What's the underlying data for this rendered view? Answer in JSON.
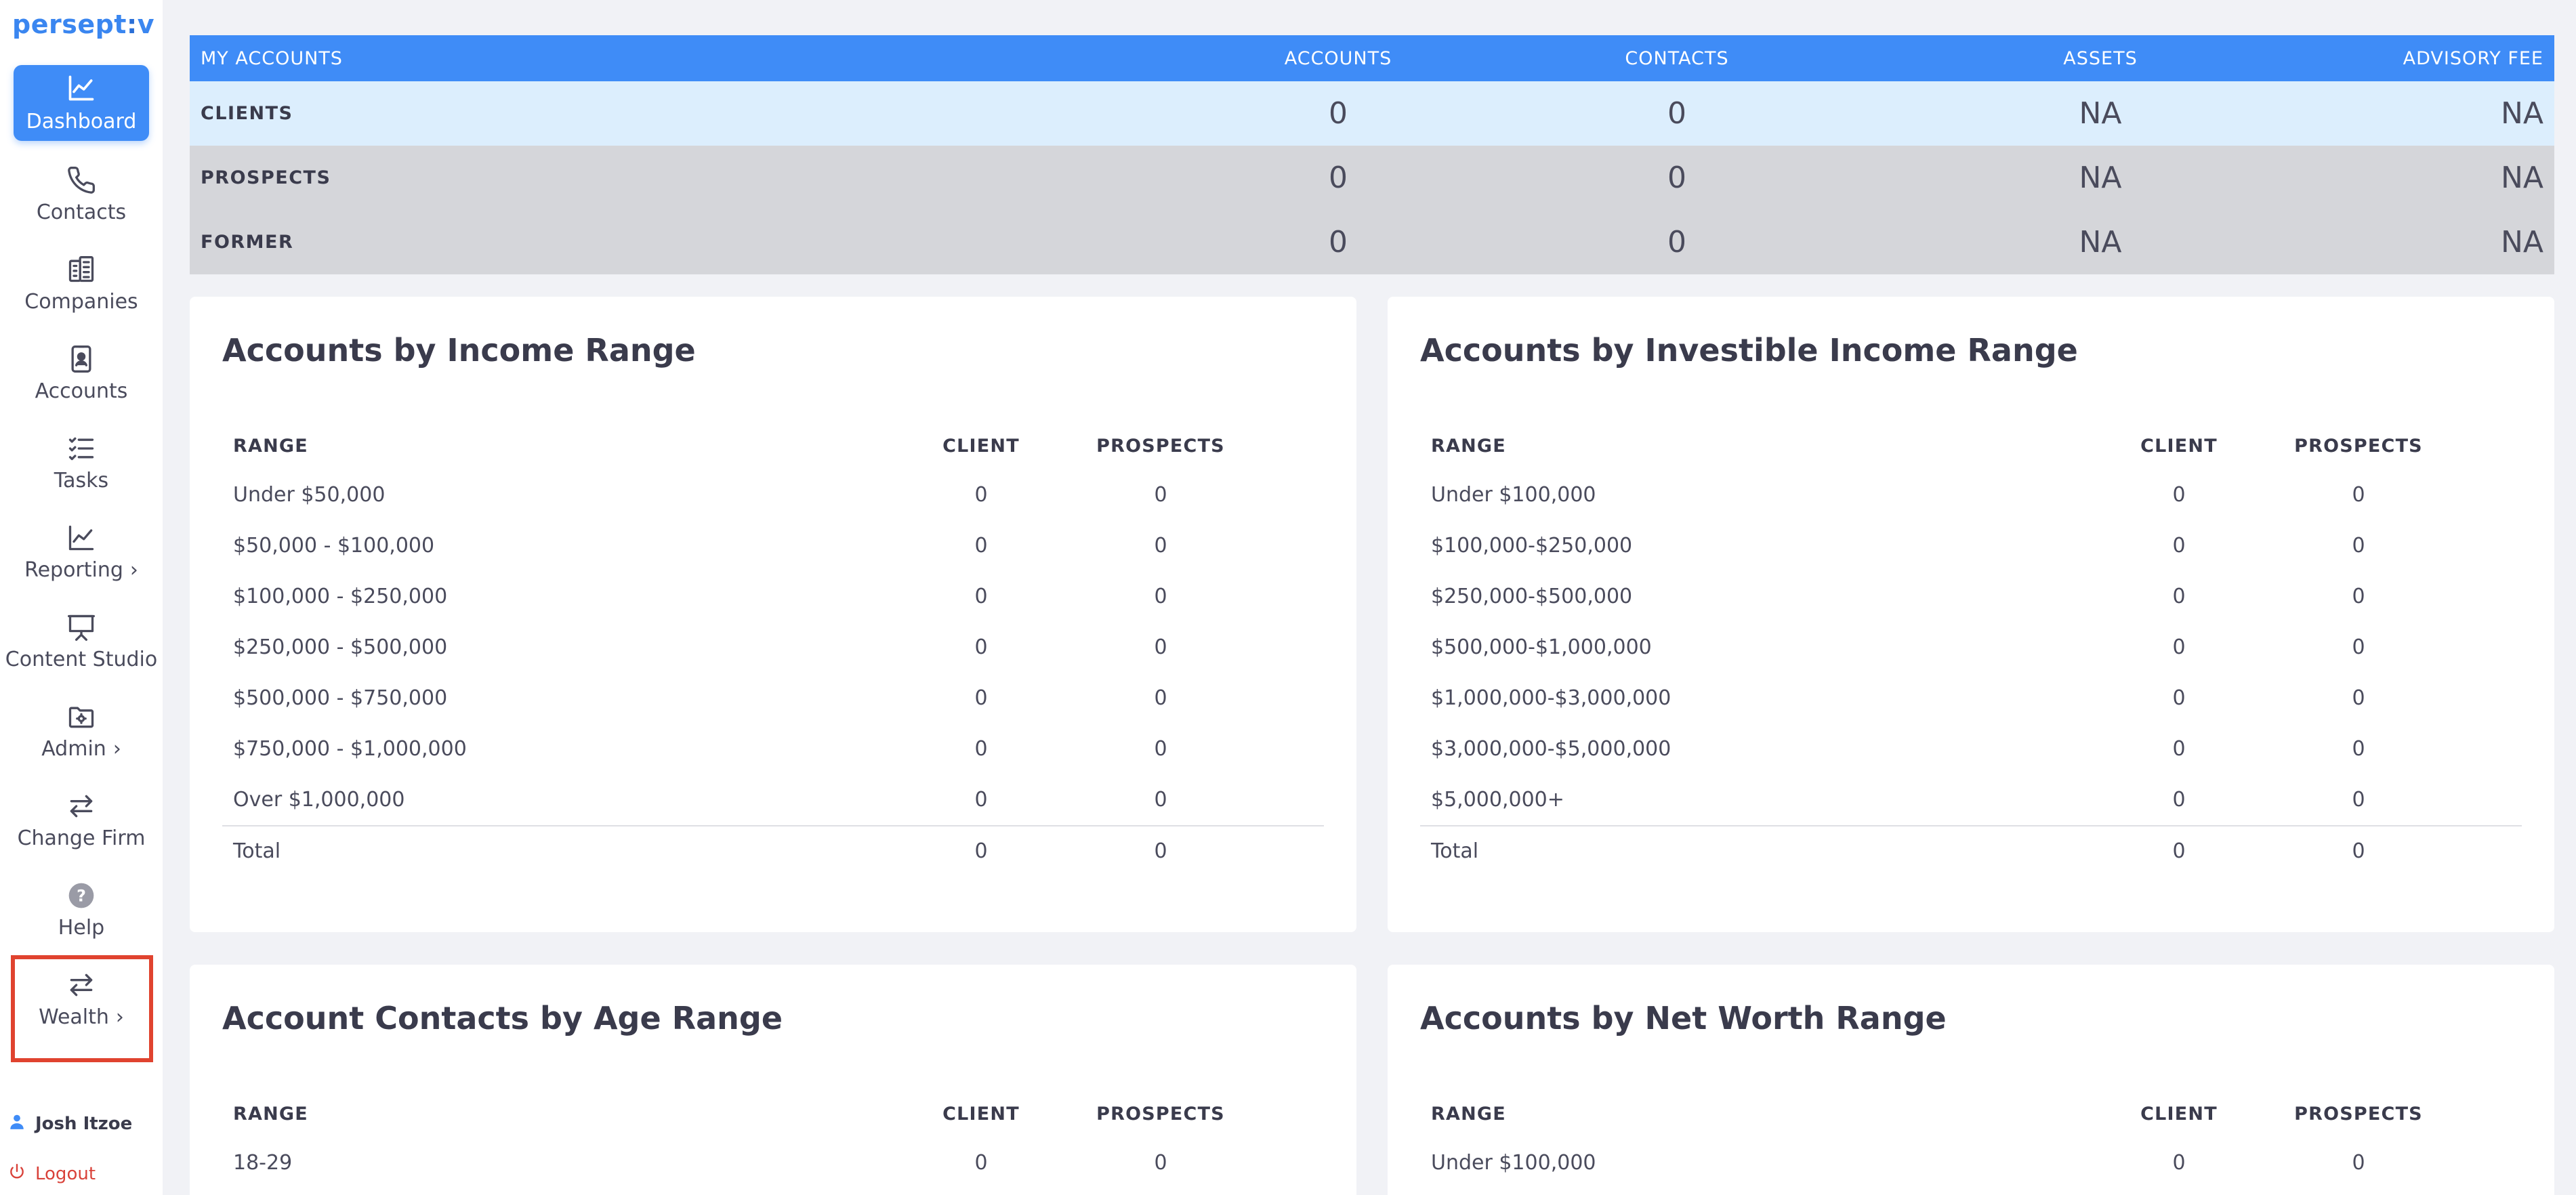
{
  "brand": {
    "logo_text": "persept",
    "logo_colon": ":",
    "logo_tail": "v"
  },
  "sidebar": {
    "items": [
      {
        "label": "Dashboard",
        "icon": "chart-line-icon",
        "active": true
      },
      {
        "label": "Contacts",
        "icon": "phone-icon"
      },
      {
        "label": "Companies",
        "icon": "building-icon"
      },
      {
        "label": "Accounts",
        "icon": "id-badge-icon"
      },
      {
        "label": "Tasks",
        "icon": "tasks-list-icon"
      },
      {
        "label": "Reporting",
        "icon": "chart-line-icon",
        "chevron": "›"
      },
      {
        "label": "Content Studio",
        "icon": "presentation-icon"
      },
      {
        "label": "Admin",
        "icon": "folder-gear-icon",
        "chevron": "›"
      },
      {
        "label": "Change Firm",
        "icon": "swap-arrows-icon"
      },
      {
        "label": "Help",
        "icon": "help-circle-icon",
        "glyph": "?"
      },
      {
        "label": "Wealth",
        "icon": "swap-arrows-icon",
        "chevron": "›"
      }
    ],
    "user_name": "Josh Itzoe",
    "logout_label": "Logout"
  },
  "summary": {
    "headers": {
      "label": "MY ACCOUNTS",
      "accounts": "ACCOUNTS",
      "contacts": "CONTACTS",
      "assets": "ASSETS",
      "advisory_fee": "ADVISORY FEE"
    },
    "rows": [
      {
        "label": "CLIENTS",
        "accounts": "0",
        "contacts": "0",
        "assets": "NA",
        "advisory_fee": "NA"
      },
      {
        "label": "PROSPECTS",
        "accounts": "0",
        "contacts": "0",
        "assets": "NA",
        "advisory_fee": "NA"
      },
      {
        "label": "FORMER",
        "accounts": "0",
        "contacts": "0",
        "assets": "NA",
        "advisory_fee": "NA"
      }
    ]
  },
  "cards": {
    "income": {
      "title": "Accounts by Income Range",
      "headers": {
        "range": "RANGE",
        "client": "CLIENT",
        "prospects": "PROSPECTS"
      },
      "rows": [
        {
          "range": "Under $50,000",
          "client": "0",
          "prospects": "0"
        },
        {
          "range": "$50,000 - $100,000",
          "client": "0",
          "prospects": "0"
        },
        {
          "range": "$100,000 - $250,000",
          "client": "0",
          "prospects": "0"
        },
        {
          "range": "$250,000 - $500,000",
          "client": "0",
          "prospects": "0"
        },
        {
          "range": "$500,000 - $750,000",
          "client": "0",
          "prospects": "0"
        },
        {
          "range": "$750,000 - $1,000,000",
          "client": "0",
          "prospects": "0"
        },
        {
          "range": "Over $1,000,000",
          "client": "0",
          "prospects": "0"
        }
      ],
      "total": {
        "range": "Total",
        "client": "0",
        "prospects": "0"
      }
    },
    "investible": {
      "title": "Accounts by Investible Income Range",
      "headers": {
        "range": "RANGE",
        "client": "CLIENT",
        "prospects": "PROSPECTS"
      },
      "rows": [
        {
          "range": "Under $100,000",
          "client": "0",
          "prospects": "0"
        },
        {
          "range": "$100,000-$250,000",
          "client": "0",
          "prospects": "0"
        },
        {
          "range": "$250,000-$500,000",
          "client": "0",
          "prospects": "0"
        },
        {
          "range": "$500,000-$1,000,000",
          "client": "0",
          "prospects": "0"
        },
        {
          "range": "$1,000,000-$3,000,000",
          "client": "0",
          "prospects": "0"
        },
        {
          "range": "$3,000,000-$5,000,000",
          "client": "0",
          "prospects": "0"
        },
        {
          "range": "$5,000,000+",
          "client": "0",
          "prospects": "0"
        }
      ],
      "total": {
        "range": "Total",
        "client": "0",
        "prospects": "0"
      }
    },
    "age": {
      "title": "Account Contacts by Age Range",
      "headers": {
        "range": "RANGE",
        "client": "CLIENT",
        "prospects": "PROSPECTS"
      },
      "rows": [
        {
          "range": "18-29",
          "client": "0",
          "prospects": "0"
        }
      ]
    },
    "networth": {
      "title": "Accounts by Net Worth Range",
      "headers": {
        "range": "RANGE",
        "client": "CLIENT",
        "prospects": "PROSPECTS"
      },
      "rows": [
        {
          "range": "Under $100,000",
          "client": "0",
          "prospects": "0"
        }
      ]
    }
  },
  "colors": {
    "accent": "#3f8cf7",
    "highlight": "#e0432f",
    "logout": "#d9423a"
  }
}
